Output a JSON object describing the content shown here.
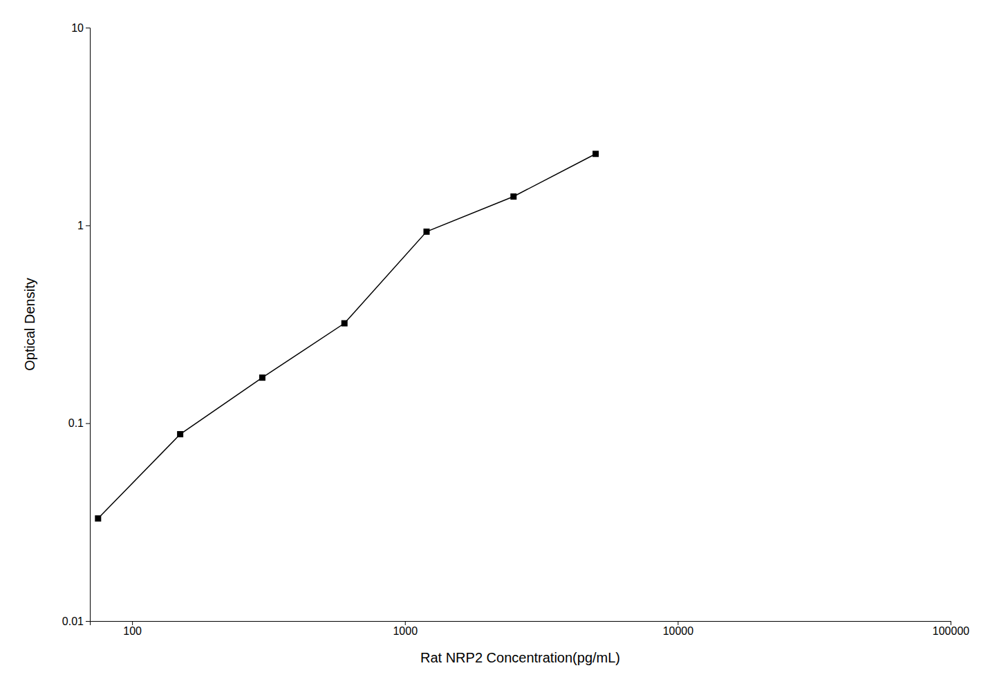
{
  "chart_data": {
    "type": "line",
    "x": [
      75,
      150,
      300,
      600,
      1200,
      2500,
      5000
    ],
    "values": [
      0.033,
      0.088,
      0.17,
      0.32,
      0.93,
      1.4,
      2.3
    ],
    "xlabel": "Rat NRP2 Concentration(pg/mL)",
    "ylabel": "Optical Density",
    "xlim": [
      70,
      100000
    ],
    "ylim": [
      0.01,
      10
    ],
    "xticks": [
      100,
      1000,
      10000,
      100000
    ],
    "yticks": [
      0.01,
      0.1,
      1,
      10
    ],
    "log": true,
    "grid": false,
    "color": "#000000",
    "marker": "square"
  }
}
